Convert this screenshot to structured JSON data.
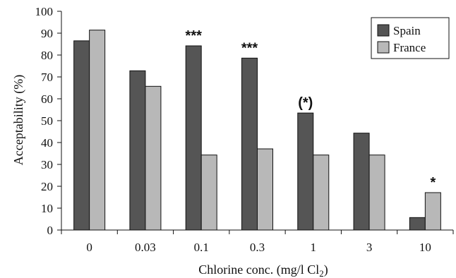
{
  "chart_data": {
    "type": "bar",
    "xlabel": "Chlorine conc. (mg/l Cl",
    "xlabel_sub": "2",
    "xlabel_end": ")",
    "ylabel": "Acceptability (%)",
    "ylim": [
      0,
      100
    ],
    "yticks": [
      0,
      10,
      20,
      30,
      40,
      50,
      60,
      70,
      80,
      90,
      100
    ],
    "categories": [
      "0",
      "0.03",
      "0.1",
      "0.3",
      "1",
      "3",
      "10"
    ],
    "series": [
      {
        "name": "Spain",
        "color": "#555555",
        "values": [
          86.5,
          72.8,
          84.2,
          78.6,
          53.5,
          44.3,
          5.7
        ]
      },
      {
        "name": "France",
        "color": "#b8b8b8",
        "values": [
          91.4,
          65.7,
          34.3,
          37.1,
          34.3,
          34.3,
          17.1
        ]
      }
    ],
    "annotations": [
      {
        "category": "0.1",
        "series": "Spain",
        "text": "***"
      },
      {
        "category": "0.3",
        "series": "Spain",
        "text": "***"
      },
      {
        "category": "1",
        "series": "Spain",
        "text": "(*)"
      },
      {
        "category": "10",
        "series": "France",
        "text": "*"
      }
    ],
    "legend_position": "top-right",
    "grid": false
  }
}
